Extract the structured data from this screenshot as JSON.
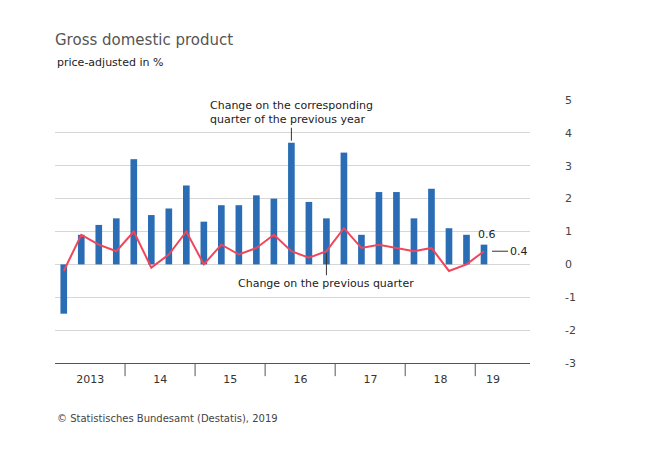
{
  "chart_data": {
    "type": "bar",
    "title": "Gross domestic product",
    "subtitle": "price-adjusted in %",
    "source": "© Statistisches Bundesamt (Destatis), 2019",
    "categories": [
      null,
      "2013",
      null,
      null,
      null,
      "14",
      null,
      null,
      null,
      "15",
      null,
      null,
      null,
      "16",
      null,
      null,
      null,
      "17",
      null,
      null,
      null,
      "18",
      null,
      null,
      "19"
    ],
    "series": [
      {
        "name": "Change on the corresponding\nquarter of the previous year",
        "type": "bar",
        "color": "#2a6db5",
        "values": [
          -1.5,
          0.9,
          1.2,
          1.4,
          3.2,
          1.5,
          1.7,
          2.4,
          1.3,
          1.8,
          1.8,
          2.1,
          2.0,
          3.7,
          1.9,
          1.4,
          3.4,
          0.9,
          2.2,
          2.2,
          1.4,
          2.3,
          1.1,
          0.9,
          0.6
        ],
        "value_labels": [
          null,
          null,
          null,
          null,
          null,
          null,
          null,
          null,
          null,
          null,
          null,
          null,
          null,
          null,
          null,
          null,
          null,
          null,
          null,
          null,
          null,
          null,
          null,
          null,
          "0.6"
        ]
      },
      {
        "name": "Change on the previous quarter",
        "type": "line",
        "color": "#f0465a",
        "values": [
          -0.2,
          0.9,
          0.6,
          0.4,
          1.0,
          -0.1,
          0.3,
          1.0,
          0.0,
          0.6,
          0.3,
          0.5,
          0.9,
          0.4,
          0.2,
          0.4,
          1.1,
          0.5,
          0.6,
          0.5,
          0.4,
          0.5,
          -0.2,
          0.0,
          0.4
        ],
        "value_labels": [
          null,
          null,
          null,
          null,
          null,
          null,
          null,
          null,
          null,
          null,
          null,
          null,
          null,
          null,
          null,
          null,
          null,
          null,
          null,
          null,
          null,
          null,
          null,
          null,
          "0.4"
        ]
      }
    ],
    "ylim": [
      -3,
      5
    ],
    "yticks": [
      -3,
      -2,
      -1,
      0,
      1,
      2,
      3,
      4,
      5
    ],
    "grid": true
  }
}
